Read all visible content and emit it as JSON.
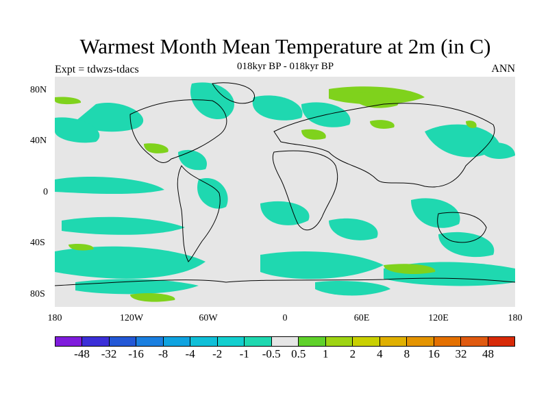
{
  "title": "Warmest Month Mean Temperature at 2m (in C)",
  "subtitle": "018kyr BP - 018kyr BP",
  "left_label": "Expt = tdwzs-tdacs",
  "right_label": "ANN",
  "lat_labels": [
    "80N",
    "40N",
    "0",
    "40S",
    "80S"
  ],
  "lon_labels": [
    "180",
    "120W",
    "60W",
    "0",
    "60E",
    "120E",
    "180"
  ],
  "legend": {
    "labels": [
      "-48",
      "-32",
      "-16",
      "-8",
      "-4",
      "-2",
      "-1",
      "-0.5",
      "0.5",
      "1",
      "2",
      "4",
      "8",
      "16",
      "32",
      "48"
    ],
    "colors": [
      "#7f1cdc",
      "#3b2fd8",
      "#2358d6",
      "#1a7fe0",
      "#0fa3e0",
      "#10bfd8",
      "#13cfcf",
      "#1fd8b0",
      "#e6e6e6",
      "#5fd12a",
      "#9ed413",
      "#c9d000",
      "#e0b000",
      "#e49400",
      "#e47000",
      "#e05a10",
      "#d82a08"
    ]
  },
  "map_colors": {
    "background": "#e6e6e6",
    "negative": "#1fd8b0",
    "strong_negative": "#13bfd0",
    "positive": "#7fd21c"
  }
}
